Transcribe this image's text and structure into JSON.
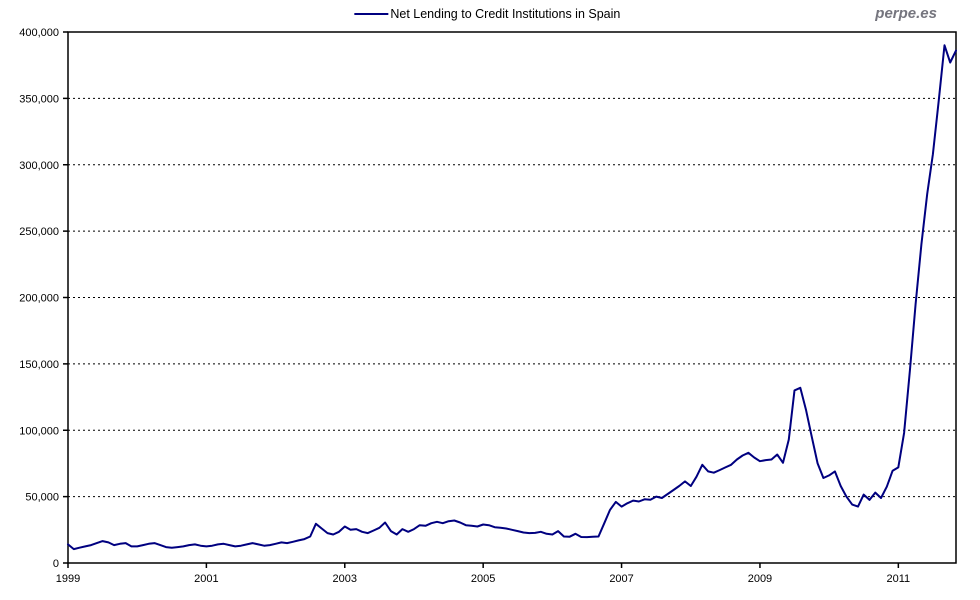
{
  "header": {
    "watermark": "perpe.es"
  },
  "legend": {
    "label": "Net Lending to Credit Institutions in Spain",
    "line_color": "#000080"
  },
  "colors": {
    "line": "#000080",
    "grid": "#000000",
    "border": "#000000",
    "text": "#000000",
    "watermark": "#75757e",
    "background": "#ffffff"
  },
  "chart_data": {
    "type": "line",
    "title": "Net Lending to Credit Institutions in Spain",
    "legend_position": "top-center",
    "grid": "horizontal-dashed",
    "xlabel": "",
    "ylabel": "",
    "x_start_year": 1999,
    "frequency": "monthly",
    "x_tick_labels": [
      "1999",
      "2001",
      "2003",
      "2005",
      "2007",
      "2009",
      "2011"
    ],
    "x_tick_year_offsets": [
      0,
      2,
      4,
      6,
      8,
      10,
      12
    ],
    "y_tick_labels": [
      "0",
      "50,000",
      "100,000",
      "150,000",
      "200,000",
      "250,000",
      "300,000",
      "350,000",
      "400,000"
    ],
    "ylim": [
      0,
      400000
    ],
    "y_step": 50000,
    "series": [
      {
        "name": "Net Lending to Credit Institutions in Spain",
        "color": "#000080",
        "values": [
          14000,
          10500,
          11500,
          12500,
          13500,
          15000,
          16500,
          15500,
          13500,
          14500,
          15000,
          12500,
          12500,
          13500,
          14500,
          15000,
          13500,
          12000,
          11500,
          12000,
          12500,
          13500,
          14000,
          13000,
          12500,
          13000,
          14000,
          14500,
          13500,
          12500,
          13000,
          14000,
          15000,
          14000,
          13000,
          13500,
          14500,
          15500,
          15000,
          16000,
          17000,
          18000,
          20000,
          29500,
          26000,
          22500,
          21500,
          23500,
          27500,
          25000,
          25500,
          23500,
          22500,
          24500,
          26500,
          30500,
          24000,
          21500,
          25500,
          23500,
          25500,
          28500,
          28000,
          30000,
          31000,
          30000,
          31500,
          32000,
          30500,
          28500,
          28000,
          27500,
          29000,
          28500,
          27000,
          26500,
          26000,
          25000,
          24000,
          23000,
          22500,
          22700,
          23500,
          22000,
          21500,
          24000,
          20000,
          19800,
          22000,
          19600,
          19500,
          19800,
          20000,
          30000,
          40000,
          46000,
          42500,
          45000,
          47000,
          46300,
          48000,
          47600,
          50000,
          49000,
          52000,
          55000,
          58000,
          61500,
          58000,
          65000,
          74000,
          69000,
          68000,
          70000,
          72000,
          74000,
          78000,
          81000,
          83000,
          79500,
          76700,
          77500,
          78000,
          81700,
          75500,
          93000,
          130000,
          132000,
          115000,
          95000,
          75000,
          64000,
          66000,
          69000,
          58000,
          50000,
          44000,
          42500,
          51500,
          47500,
          53000,
          49000,
          57500,
          69500,
          72000,
          98000,
          145000,
          195000,
          240000,
          278000,
          308000,
          348000,
          390000,
          377000,
          386000
        ]
      }
    ]
  },
  "layout_note": "values are monthly from Jan 1999 to Nov 2011"
}
